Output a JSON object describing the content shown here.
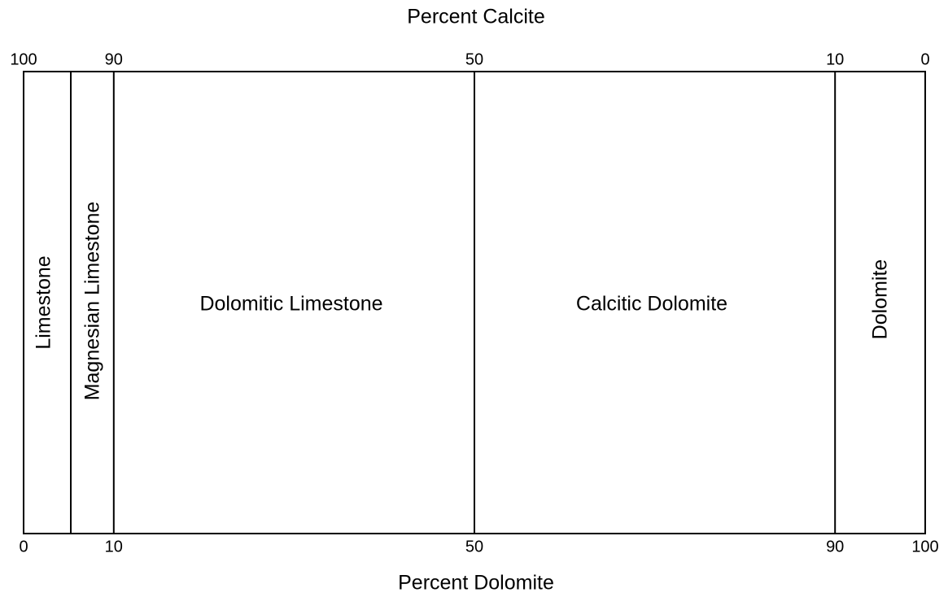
{
  "top_axis": {
    "title": "Percent Calcite",
    "ticks": [
      100,
      90,
      50,
      10,
      0
    ]
  },
  "bottom_axis": {
    "title": "Percent Dolomite",
    "ticks": [
      0,
      10,
      50,
      90,
      100
    ]
  },
  "zones": [
    {
      "label": "Limestone"
    },
    {
      "label": "Magnesian Limestone"
    },
    {
      "label": "Dolomitic Limestone"
    },
    {
      "label": "Calcitic Dolomite"
    },
    {
      "label": "Dolomite"
    }
  ]
}
